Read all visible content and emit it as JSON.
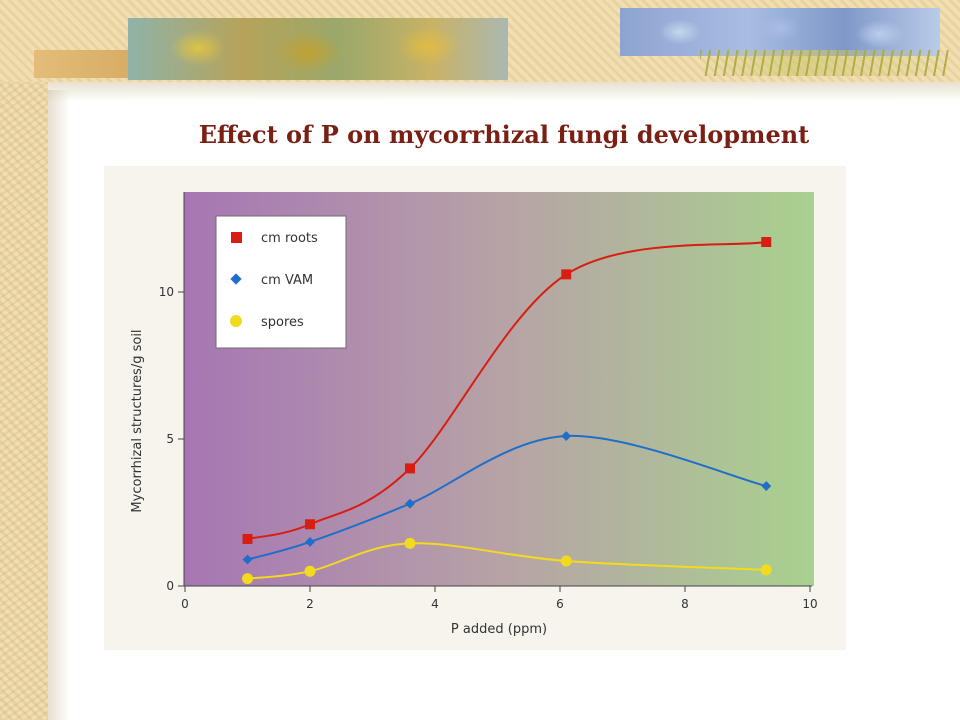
{
  "slide": {
    "title": "Effect of P on mycorrhizal fungi development"
  },
  "chart_data": {
    "type": "line",
    "xlabel": "P added (ppm)",
    "ylabel": "Mycorrhizal structures/g soil",
    "xlim": [
      0,
      10
    ],
    "ylim": [
      0,
      13.5
    ],
    "x_ticks": [
      0,
      2,
      4,
      6,
      8,
      10
    ],
    "y_ticks": [
      0,
      5,
      10
    ],
    "grid": false,
    "legend_position": "top-left",
    "series": [
      {
        "name": "cm roots",
        "color": "#d81e12",
        "marker": "square",
        "x": [
          1.0,
          2.0,
          3.6,
          6.1,
          9.3
        ],
        "y": [
          1.6,
          2.1,
          4.0,
          10.6,
          11.7
        ]
      },
      {
        "name": "cm VAM",
        "color": "#1f6ec9",
        "marker": "diamond",
        "x": [
          1.0,
          2.0,
          3.6,
          6.1,
          9.3
        ],
        "y": [
          0.9,
          1.5,
          2.8,
          5.1,
          3.4
        ]
      },
      {
        "name": "spores",
        "color": "#f3da1f",
        "marker": "circle",
        "x": [
          1.0,
          2.0,
          3.6,
          6.1,
          9.3
        ],
        "y": [
          0.25,
          0.5,
          1.45,
          0.85,
          0.55
        ]
      }
    ]
  }
}
